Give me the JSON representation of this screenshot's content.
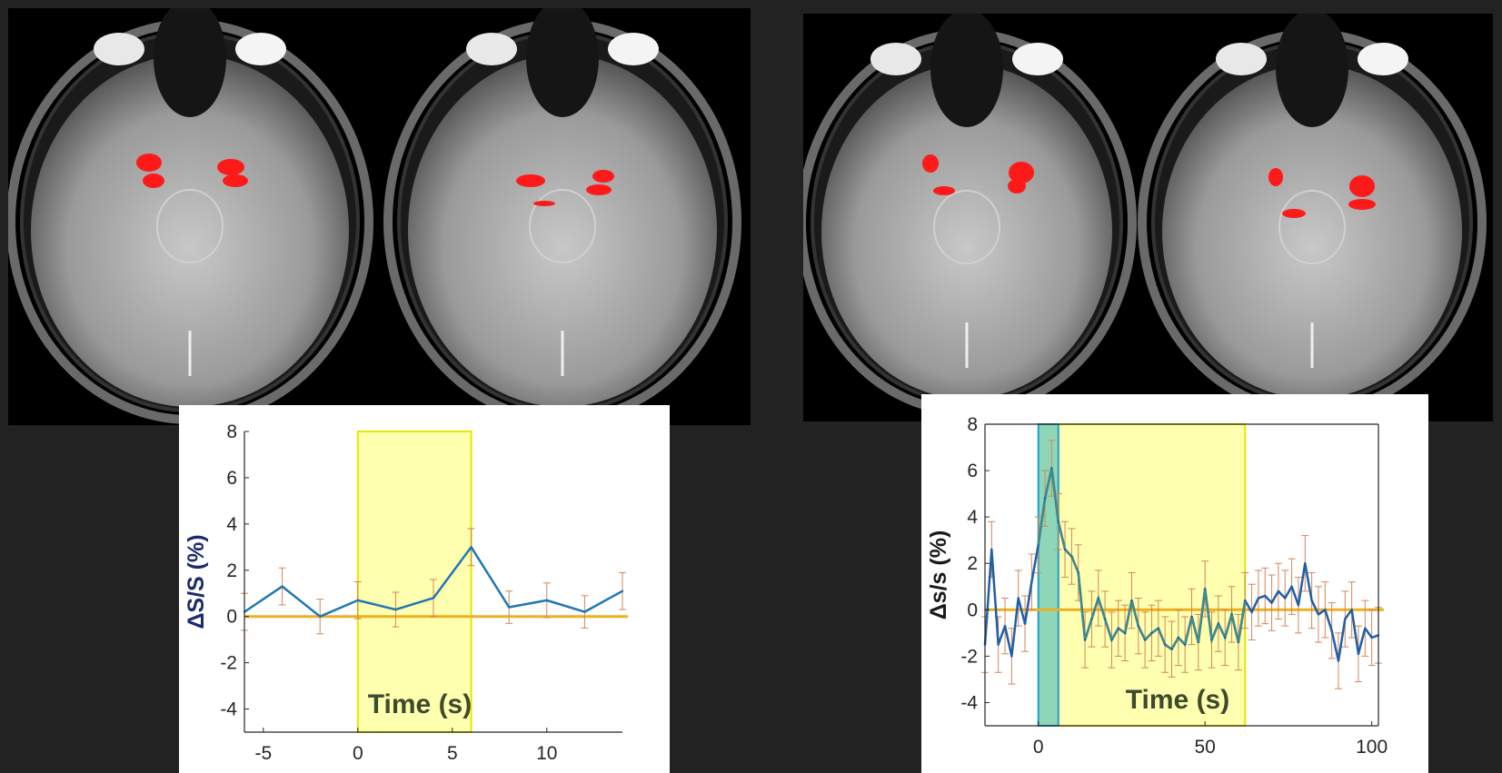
{
  "chart_data": [
    {
      "type": "line",
      "xlabel": "Time (s)",
      "ylabel": "ΔS/S (%)",
      "xlim": [
        -6,
        14
      ],
      "ylim": [
        -5,
        8
      ],
      "xticks": [
        "-5",
        "0",
        "5",
        "10"
      ],
      "yticks": [
        "8",
        "6",
        "4",
        "2",
        "0",
        "-2",
        "-4"
      ],
      "stimulus_window": [
        0,
        6
      ],
      "series": [
        {
          "x": [
            -6,
            -4,
            -2,
            0,
            2,
            4,
            6,
            8,
            10,
            12,
            14
          ],
          "y": [
            0.2,
            1.3,
            0.0,
            0.7,
            0.3,
            0.8,
            3.0,
            0.4,
            0.7,
            0.2,
            1.1
          ],
          "err": [
            0.8,
            0.8,
            0.75,
            0.8,
            0.75,
            0.8,
            0.8,
            0.7,
            0.75,
            0.7,
            0.8
          ],
          "color": "#1f77b4"
        }
      ],
      "baseline": 0,
      "colors": {
        "line": "#1f77b4",
        "errorbar": "#d4855a",
        "baseline": "#edb120",
        "stimulus": "#ffffb0",
        "stimulus_edge": "#e6e600",
        "ylabel": "#1a2c6e"
      }
    },
    {
      "type": "line",
      "xlabel": "Time (s)",
      "ylabel": "Δs/s (%)",
      "xlim": [
        -16,
        102
      ],
      "ylim": [
        -5,
        8
      ],
      "xticks": [
        "0",
        "50",
        "100"
      ],
      "yticks": [
        "8",
        "6",
        "4",
        "2",
        "0",
        "-2",
        "-4"
      ],
      "stimulus_window": [
        6,
        62
      ],
      "onset_window": [
        0,
        6
      ],
      "series": [
        {
          "x": [
            -16,
            -14,
            -12,
            -10,
            -8,
            -6,
            -4,
            -2,
            0,
            2,
            4,
            6,
            8,
            10,
            12,
            14,
            16,
            18,
            20,
            22,
            24,
            26,
            28,
            30,
            32,
            34,
            36,
            38,
            40,
            42,
            44,
            46,
            48,
            50,
            52,
            54,
            56,
            58,
            60,
            62,
            64,
            66,
            68,
            70,
            72,
            74,
            76,
            78,
            80,
            82,
            84,
            86,
            88,
            90,
            92,
            94,
            96,
            98,
            100,
            102
          ],
          "y": [
            -1.5,
            2.6,
            -1.5,
            -0.7,
            -2.0,
            0.5,
            -0.6,
            1.2,
            2.8,
            4.8,
            6.1,
            3.8,
            2.6,
            2.3,
            1.6,
            -1.3,
            -0.4,
            0.5,
            -0.4,
            -1.3,
            -0.8,
            -1.0,
            0.4,
            -0.7,
            -1.3,
            -1.0,
            -0.8,
            -1.5,
            -1.7,
            -1.2,
            -1.5,
            -0.3,
            -1.4,
            0.9,
            -1.3,
            -0.6,
            -1.2,
            -0.2,
            -1.4,
            0.4,
            -0.1,
            0.5,
            0.6,
            0.3,
            0.8,
            0.5,
            1.0,
            0.2,
            2.0,
            0.4,
            -0.2,
            0.0,
            -0.9,
            -2.2,
            -0.4,
            0.0,
            -1.9,
            -0.8,
            -1.2,
            -1.1
          ],
          "err": 1.2,
          "color": "#1f5fa8"
        }
      ],
      "baseline": 0,
      "colors": {
        "line": "#1f5fa8",
        "line_in_window": "#3f8a8a",
        "errorbar": "#d4855a",
        "baseline": "#edb120",
        "stimulus": "#ffffb0",
        "stimulus_edge": "#e6e600",
        "onset": "#8fd6b8",
        "onset_edge": "#1fa0d0",
        "ylabel": "#1a1a1a"
      }
    }
  ],
  "colors": {
    "background": "#222222",
    "activation": "#ff1a1a"
  }
}
